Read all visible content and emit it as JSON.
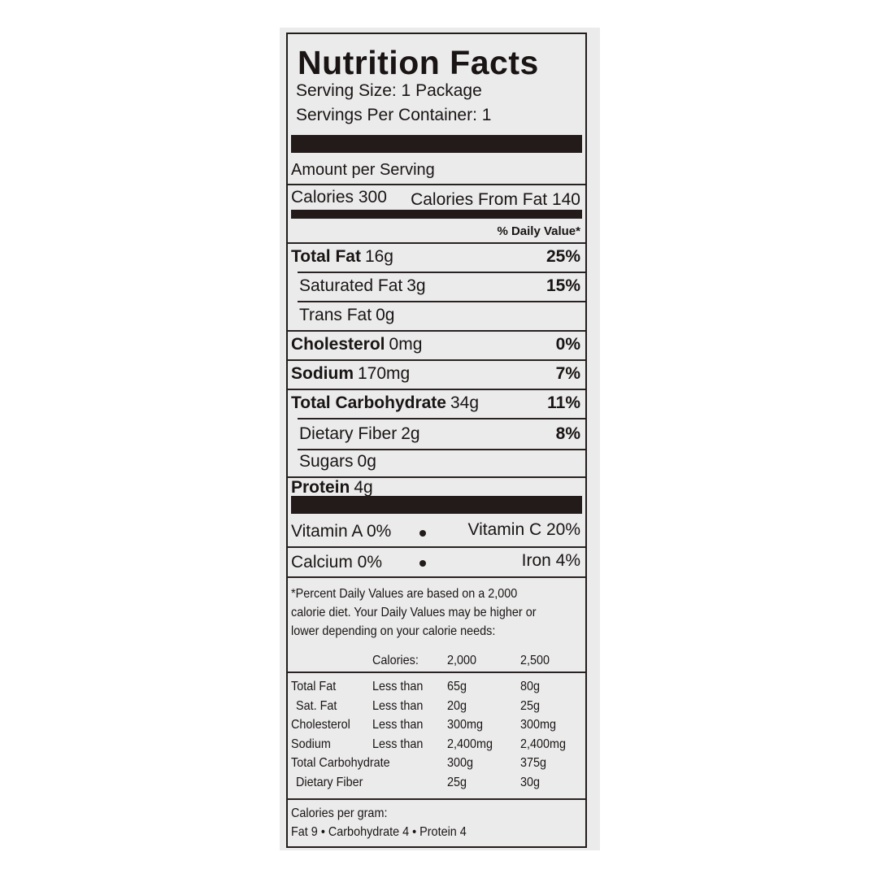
{
  "title": "Nutrition Facts",
  "serving_size": "Serving Size: 1 Package",
  "servings_per_container": "Servings Per Container: 1",
  "amount_per_serving": "Amount per Serving",
  "calories": {
    "label": "Calories",
    "value": "300",
    "from_fat_label": "Calories From Fat",
    "from_fat_value": "140"
  },
  "daily_value_header": "% Daily Value*",
  "nutrients": [
    {
      "name": "Total Fat",
      "amount": "16g",
      "dv": "25%"
    },
    {
      "name": "Saturated Fat",
      "amount": "3g",
      "dv": "15%"
    },
    {
      "name": "Trans Fat",
      "amount": "0g",
      "dv": ""
    },
    {
      "name": "Cholesterol",
      "amount": "0mg",
      "dv": "0%"
    },
    {
      "name": "Sodium",
      "amount": "170mg",
      "dv": "7%"
    },
    {
      "name": "Total Carbohydrate",
      "amount": "34g",
      "dv": "11%"
    },
    {
      "name": "Dietary Fiber",
      "amount": "2g",
      "dv": "8%"
    },
    {
      "name": "Sugars",
      "amount": "0g",
      "dv": ""
    },
    {
      "name": "Protein",
      "amount": "4g",
      "dv": ""
    }
  ],
  "vitamins": [
    {
      "left": "Vitamin A 0%",
      "right": "Vitamin C 20%"
    },
    {
      "left": "Calcium 0%",
      "right": "Iron 4%"
    }
  ],
  "footnote": [
    "*Percent Daily Values are based on a 2,000",
    "calorie diet. Your Daily Values may be higher or",
    "lower depending on your calorie needs:"
  ],
  "dv_table": {
    "header": [
      "",
      "Calories:",
      "2,000",
      "2,500"
    ],
    "rows": [
      [
        "Total Fat",
        "Less than",
        "65g",
        "80g"
      ],
      [
        "Sat. Fat",
        "Less than",
        "20g",
        "25g"
      ],
      [
        "Cholesterol",
        "Less than",
        "300mg",
        "300mg"
      ],
      [
        "Sodium",
        "Less than",
        "2,400mg",
        "2,400mg"
      ],
      [
        "Total Carbohydrate",
        "",
        "300g",
        "375g"
      ],
      [
        "Dietary Fiber",
        "",
        "25g",
        "30g"
      ]
    ]
  },
  "calories_per_gram": {
    "label": "Calories per gram:",
    "values": "Fat 9 • Carbohydrate 4 • Protein 4"
  }
}
